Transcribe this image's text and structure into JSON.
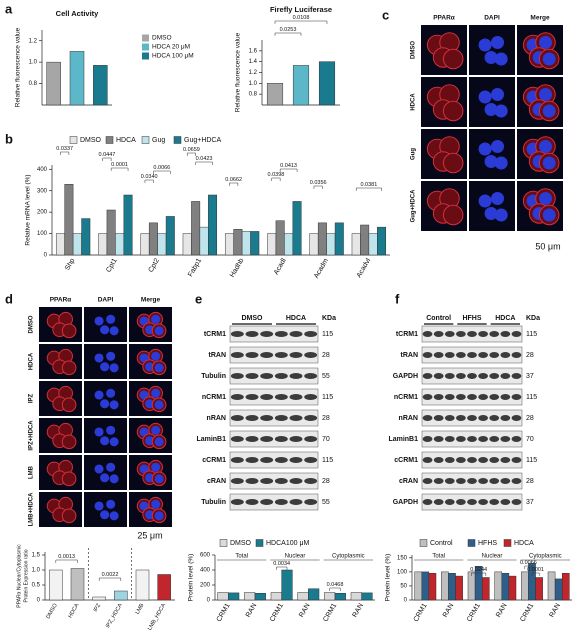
{
  "panel_labels": [
    "a",
    "b",
    "c",
    "d",
    "e",
    "f"
  ],
  "chart_data": [
    {
      "type": "bar",
      "title": "Cell Activity",
      "ylabel": "Relative fluorescence value",
      "categories": [
        "DMSO",
        "HDCA 20 μM",
        "HDCA 100 μM"
      ],
      "values": [
        1.0,
        1.1,
        0.97
      ],
      "colors": [
        "#a6a6a6",
        "#5cb8c9",
        "#1a7b8f"
      ],
      "ylim": [
        0.6,
        1.3
      ],
      "yticks": [
        0.8,
        {
          "value": 1,
          "label": "1.0"
        },
        1.2
      ],
      "legend": "right"
    },
    {
      "type": "bar",
      "title": "Firefly Luciferase",
      "ylabel": "Relative fluorescence value",
      "categories": [
        null,
        null,
        null
      ],
      "values": [
        1.0,
        1.33,
        1.4
      ],
      "colors": [
        "#a6a6a6",
        "#5cb8c9",
        "#1a7b8f"
      ],
      "ylim": [
        0.6,
        1.8
      ],
      "yticks": [
        0.8,
        {
          "value": 1,
          "label": "1.0"
        },
        1.2,
        1.4,
        1.6
      ],
      "annotations": [
        "0.0253",
        "0.0108"
      ]
    },
    {
      "type": "bar",
      "ylabel": "Relative mRNA level (%)",
      "categories": [
        "Shp",
        "Cpt1",
        "Cpt2",
        "Fabp1",
        "Hadhb",
        "Acadl",
        "Acadm",
        "Acadvl"
      ],
      "series": [
        {
          "name": "DMSO",
          "color": "#e6e6e6",
          "values": [
            100,
            100,
            100,
            100,
            100,
            100,
            100,
            100
          ]
        },
        {
          "name": "HDCA",
          "color": "#808080",
          "values": [
            330,
            210,
            150,
            250,
            120,
            160,
            150,
            140
          ]
        },
        {
          "name": "Gug",
          "color": "#bfe4ec",
          "values": [
            100,
            100,
            100,
            130,
            110,
            100,
            100,
            100
          ]
        },
        {
          "name": "Gug+HDCA",
          "color": "#1a7b8f",
          "values": [
            170,
            280,
            180,
            280,
            110,
            250,
            150,
            130
          ]
        }
      ],
      "ylim": [
        0,
        420
      ],
      "yticks": [
        0,
        100,
        200,
        300,
        400
      ],
      "legend": "top",
      "annotations": [
        "0.0337",
        "0.0447",
        "0.0001",
        "0.0340",
        "0.0066",
        "0.0659",
        "0.0423",
        "0.0662",
        "0.0398",
        "0.0413",
        "0.0356",
        "0.0381"
      ]
    },
    {
      "type": "bar",
      "ylabel": [
        "PPARα Nuclear/Cytoplasmic",
        "Protein Expression ratio"
      ],
      "categories": [
        "DMSO",
        "HDCA",
        "IPZ",
        "IPZ_HDCA",
        "LMB",
        "LMB_HDCA"
      ],
      "values": [
        1.0,
        1.05,
        0.1,
        0.3,
        1.0,
        0.85
      ],
      "colors": [
        "#f2f2f2",
        "#bfbfbf",
        "#f2f2f2",
        "#9fd3df",
        "#f2f2f2",
        "#c0262b"
      ],
      "ylim": [
        0,
        1.6
      ],
      "yticks": [
        0,
        0.5,
        {
          "value": 1,
          "label": "1.0"
        },
        1.5
      ],
      "annotations": [
        "0.0013",
        "0.0022"
      ]
    },
    {
      "type": "bar",
      "ylabel": "Protein level (%)",
      "groups": [
        "Total",
        "Nuclear",
        "Cytoplasmic"
      ],
      "categories": [
        "CRM1",
        "RAN",
        "CRM1",
        "RAN",
        "CRM1",
        "RAN"
      ],
      "series": [
        {
          "name": "DMSO",
          "color": "#d9d9d9",
          "values": [
            100,
            100,
            100,
            100,
            100,
            100
          ]
        },
        {
          "name": "HDCA100 μM",
          "color": "#1a7b8f",
          "values": [
            95,
            90,
            400,
            150,
            90,
            95
          ]
        }
      ],
      "ylim": [
        0,
        600
      ],
      "yticks": [
        0,
        200,
        400,
        600
      ],
      "legend": "top",
      "annotations": [
        "0.0034",
        "0.0468"
      ]
    },
    {
      "type": "bar",
      "ylabel": "Protein level (%)",
      "groups": [
        "Total",
        "Nuclear",
        "Cytoplasmic"
      ],
      "categories": [
        "CRM1",
        "RAN",
        "CRM1",
        "RAN",
        "CRM1",
        "RAN"
      ],
      "series": [
        {
          "name": "Control",
          "color": "#bfbfbf",
          "values": [
            100,
            100,
            100,
            100,
            100,
            100
          ]
        },
        {
          "name": "HFHS",
          "color": "#2e5f8a",
          "values": [
            100,
            95,
            120,
            95,
            130,
            75
          ]
        },
        {
          "name": "HDCA",
          "color": "#c0262b",
          "values": [
            95,
            85,
            80,
            85,
            80,
            95
          ]
        }
      ],
      "ylim": [
        0,
        160
      ],
      "yticks": [
        0,
        50,
        100,
        150
      ],
      "legend": "top",
      "annotations": [
        "0.0244",
        "0.0066",
        "0.0001"
      ]
    }
  ],
  "micrographs": [
    {
      "columns": [
        "PPARα",
        "DAPI",
        "Merge"
      ],
      "rows": [
        "DMSO",
        "HDCA",
        "Gug",
        "Gug+HDCA"
      ],
      "scale_bar": "50 μm"
    },
    {
      "columns": [
        "PPARα",
        "DAPI",
        "Merge"
      ],
      "rows": [
        "DMSO",
        "HDCA",
        "IPZ",
        "IPZ+HDCA",
        "LMB",
        "LMB+HDCA"
      ],
      "scale_bar": "25 μm"
    }
  ],
  "blots": [
    {
      "conditions": [
        "DMSO",
        "HDCA"
      ],
      "unit": "KDa",
      "rows": [
        {
          "label": "tCRM1",
          "kda": 115
        },
        {
          "label": "tRAN",
          "kda": 28
        },
        {
          "label": "Tubulin",
          "kda": 55
        },
        {
          "label": "nCRM1",
          "kda": 115
        },
        {
          "label": "nRAN",
          "kda": 28
        },
        {
          "label": "LaminB1",
          "kda": 70
        },
        {
          "label": "cCRM1",
          "kda": 115
        },
        {
          "label": "cRAN",
          "kda": 28
        },
        {
          "label": "Tubulin",
          "kda": 55
        }
      ]
    },
    {
      "conditions": [
        "Control",
        "HFHS",
        "HDCA"
      ],
      "unit": "KDa",
      "rows": [
        {
          "label": "tCRM1",
          "kda": 115
        },
        {
          "label": "tRAN",
          "kda": 28
        },
        {
          "label": "GAPDH",
          "kda": 37
        },
        {
          "label": "nCRM1",
          "kda": 115
        },
        {
          "label": "nRAN",
          "kda": 28
        },
        {
          "label": "LaminB1",
          "kda": 70
        },
        {
          "label": "cCRM1",
          "kda": 115
        },
        {
          "label": "cRAN",
          "kda": 28
        },
        {
          "label": "GAPDH",
          "kda": 37
        }
      ]
    }
  ]
}
